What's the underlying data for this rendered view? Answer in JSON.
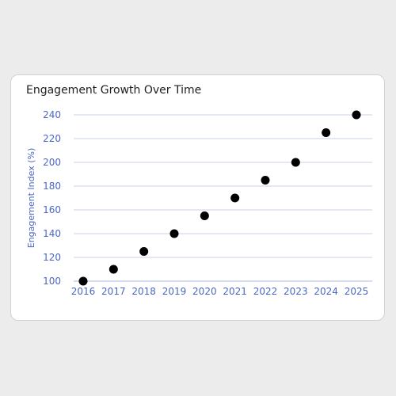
{
  "chart_data": {
    "type": "scatter",
    "title": "Engagement Growth Over Time",
    "xlabel": "",
    "ylabel": "Engagement Index (%)",
    "x": [
      2016,
      2017,
      2018,
      2019,
      2020,
      2021,
      2022,
      2023,
      2024,
      2025
    ],
    "y": [
      100,
      110,
      125,
      140,
      155,
      170,
      185,
      200,
      225,
      240
    ],
    "x_ticks": [
      "2016",
      "2017",
      "2018",
      "2019",
      "2020",
      "2021",
      "2022",
      "2023",
      "2024",
      "2025"
    ],
    "y_ticks": [
      "100",
      "120",
      "140",
      "160",
      "180",
      "200",
      "220",
      "240"
    ],
    "xlim": [
      2016,
      2025
    ],
    "ylim": [
      100,
      240
    ],
    "grid": "horizontal",
    "legend": "none",
    "colors": {
      "marker": "#000000",
      "grid": "#c8d0ea",
      "tick_text": "#4a67c2",
      "axis_label": "#4a67c2",
      "title": "#1f1f1f",
      "card_background": "#ffffff",
      "page_background": "#ececec"
    }
  }
}
